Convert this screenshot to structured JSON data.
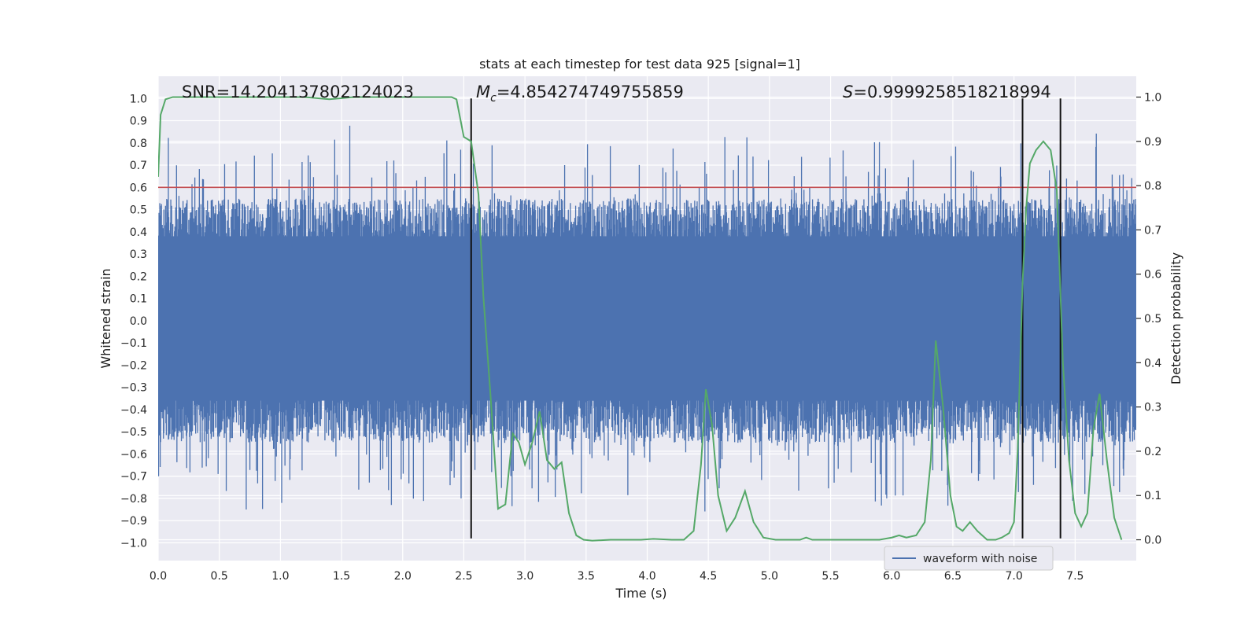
{
  "chart_data": {
    "type": "line",
    "title": "stats at each timestep for test data 925 [signal=1]",
    "xlabel": "Time (s)",
    "ylabel_left": "Whitened strain",
    "ylabel_right": "Detection probability",
    "xlim": [
      0,
      8
    ],
    "ylim_left": [
      -1.08,
      1.1
    ],
    "ylim_right": [
      -0.047,
      1.047
    ],
    "x_ticks": [
      0.0,
      0.5,
      1.0,
      1.5,
      2.0,
      2.5,
      3.0,
      3.5,
      4.0,
      4.5,
      5.0,
      5.5,
      6.0,
      6.5,
      7.0,
      7.5
    ],
    "x_tick_labels": [
      "0.0",
      "0.5",
      "1.0",
      "1.5",
      "2.0",
      "2.5",
      "3.0",
      "3.5",
      "4.0",
      "4.5",
      "5.0",
      "5.5",
      "6.0",
      "6.5",
      "7.0",
      "7.5"
    ],
    "y_left_ticks": [
      -1.0,
      -0.9,
      -0.8,
      -0.7,
      -0.6,
      -0.5,
      -0.4,
      -0.3,
      -0.2,
      -0.1,
      0.0,
      0.1,
      0.2,
      0.3,
      0.4,
      0.5,
      0.6,
      0.7,
      0.8,
      0.9,
      1.0
    ],
    "y_left_tick_labels": [
      "−1.0",
      "−0.9",
      "−0.8",
      "−0.7",
      "−0.6",
      "−0.5",
      "−0.4",
      "−0.3",
      "−0.2",
      "−0.1",
      "0.0",
      "0.1",
      "0.2",
      "0.3",
      "0.4",
      "0.5",
      "0.6",
      "0.7",
      "0.8",
      "0.9",
      "1.0"
    ],
    "y_right_ticks": [
      0.0,
      0.1,
      0.2,
      0.3,
      0.4,
      0.5,
      0.6,
      0.7,
      0.8,
      0.9,
      1.0
    ],
    "y_right_tick_labels": [
      "0.0",
      "0.1",
      "0.2",
      "0.3",
      "0.4",
      "0.5",
      "0.6",
      "0.7",
      "0.8",
      "0.9",
      "1.0"
    ],
    "grid": true,
    "legend": {
      "placement": "lower-right",
      "entries": [
        "waveform with noise"
      ]
    },
    "annotations": {
      "snr": "SNR=14.204137802124023",
      "mc_symbol": "M",
      "mc_sub": "c",
      "mc_value": "=4.854274749755859",
      "s_symbol": "S",
      "s_value": "=0.9999258518218994"
    },
    "threshold_line": {
      "axis": "left",
      "y": 0.6,
      "color": "#c44e52"
    },
    "vertical_lines": [
      {
        "x": 2.56,
        "y_range": [
          -0.98,
          1.0
        ]
      },
      {
        "x": 7.07,
        "y_range": [
          -0.98,
          1.0
        ]
      },
      {
        "x": 7.38,
        "y_range": [
          -0.98,
          1.0
        ]
      }
    ],
    "series": [
      {
        "name": "waveform with noise",
        "color": "#4c72b0",
        "axis": "left",
        "duration": 8.0,
        "approx_envelope": {
          "typical_max": 0.55,
          "typical_min": -0.55,
          "peak_max": 1.0,
          "peak_min": -0.97
        }
      },
      {
        "color": "#55a868",
        "axis": "right",
        "x": [
          0.0,
          0.02,
          0.06,
          0.12,
          0.3,
          0.6,
          0.9,
          1.2,
          1.4,
          1.6,
          1.9,
          2.0,
          2.2,
          2.4,
          2.44,
          2.5,
          2.56,
          2.62,
          2.66,
          2.72,
          2.78,
          2.84,
          2.9,
          2.95,
          3.0,
          3.06,
          3.12,
          3.18,
          3.24,
          3.3,
          3.36,
          3.42,
          3.48,
          3.55,
          3.7,
          3.85,
          3.95,
          4.05,
          4.2,
          4.3,
          4.38,
          4.44,
          4.48,
          4.53,
          4.58,
          4.65,
          4.72,
          4.8,
          4.87,
          4.95,
          5.05,
          5.15,
          5.25,
          5.3,
          5.35,
          5.45,
          5.6,
          5.75,
          5.9,
          6.0,
          6.06,
          6.12,
          6.2,
          6.27,
          6.32,
          6.36,
          6.42,
          6.48,
          6.53,
          6.58,
          6.64,
          6.7,
          6.78,
          6.85,
          6.9,
          6.96,
          7.0,
          7.03,
          7.07,
          7.1,
          7.13,
          7.18,
          7.24,
          7.3,
          7.35,
          7.4,
          7.45,
          7.5,
          7.55,
          7.6,
          7.65,
          7.7,
          7.76,
          7.82,
          7.88
        ],
        "values": [
          0.82,
          0.96,
          0.995,
          1.0,
          1.0,
          1.0,
          1.0,
          1.0,
          0.995,
          1.0,
          1.0,
          1.0,
          1.0,
          1.0,
          0.995,
          0.91,
          0.9,
          0.78,
          0.55,
          0.32,
          0.07,
          0.08,
          0.24,
          0.22,
          0.17,
          0.22,
          0.29,
          0.18,
          0.16,
          0.175,
          0.06,
          0.01,
          0.0,
          -0.002,
          0.0,
          0.0,
          0.0,
          0.002,
          0.0,
          0.0,
          0.02,
          0.17,
          0.34,
          0.26,
          0.1,
          0.02,
          0.05,
          0.11,
          0.04,
          0.005,
          0.0,
          0.0,
          0.0,
          0.005,
          0.0,
          0.0,
          0.0,
          0.0,
          0.0,
          0.005,
          0.01,
          0.005,
          0.01,
          0.04,
          0.18,
          0.45,
          0.3,
          0.1,
          0.03,
          0.02,
          0.04,
          0.02,
          0.0,
          0.0,
          0.005,
          0.015,
          0.04,
          0.2,
          0.58,
          0.75,
          0.85,
          0.88,
          0.9,
          0.88,
          0.79,
          0.4,
          0.18,
          0.06,
          0.03,
          0.06,
          0.25,
          0.33,
          0.18,
          0.05,
          0.0
        ]
      }
    ]
  }
}
